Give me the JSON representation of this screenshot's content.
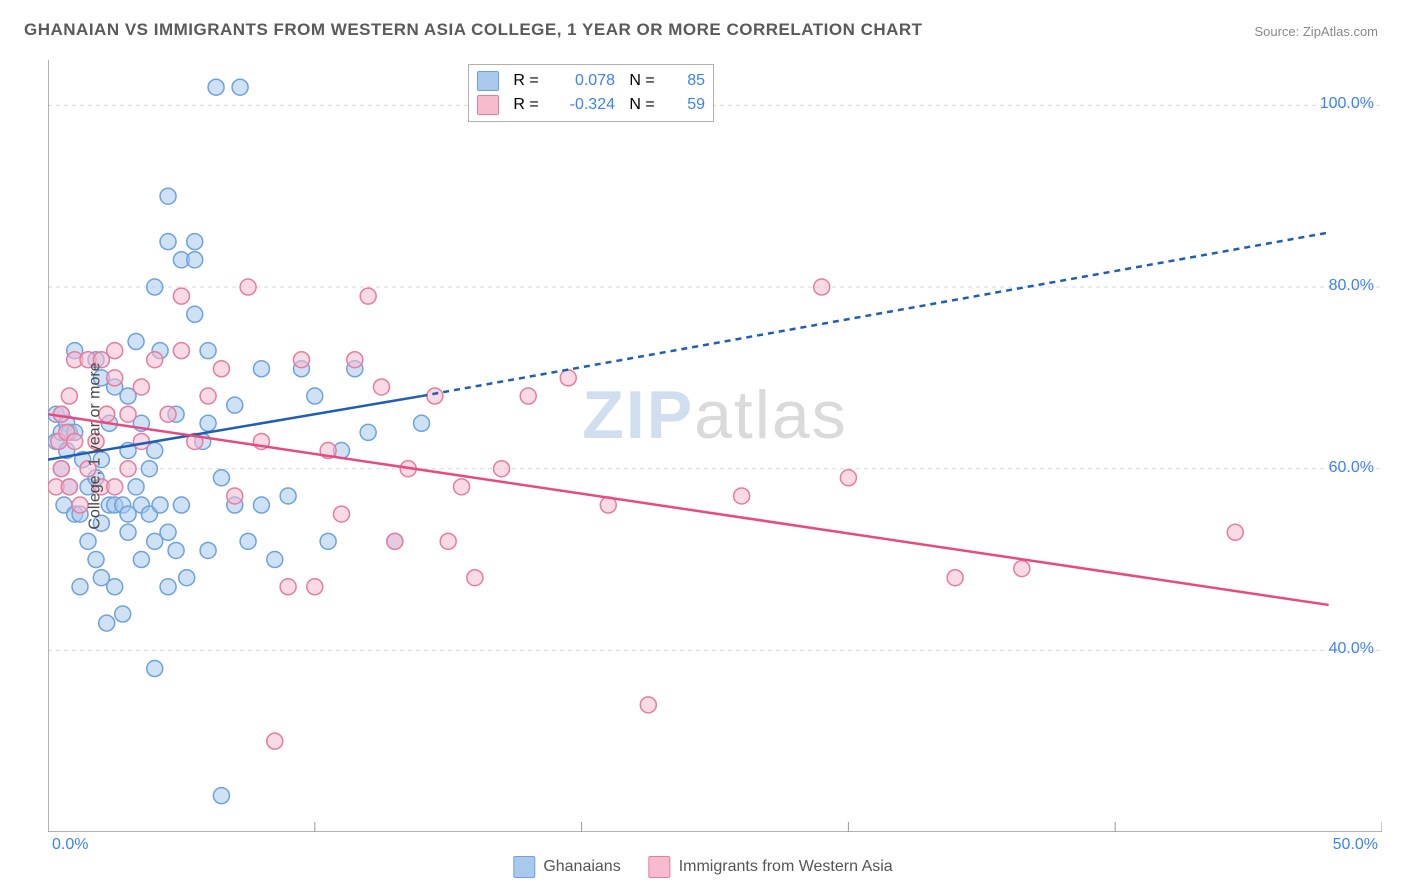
{
  "title": "GHANAIAN VS IMMIGRANTS FROM WESTERN ASIA COLLEGE, 1 YEAR OR MORE CORRELATION CHART",
  "source": "Source: ZipAtlas.com",
  "ylabel": "College, 1 year or more",
  "watermark": {
    "part1": "ZIP",
    "part2": "atlas"
  },
  "chart": {
    "type": "scatter",
    "xlim": [
      0,
      50
    ],
    "ylim": [
      20,
      105
    ],
    "xtick_positions": [
      0,
      10,
      20,
      30,
      40,
      50
    ],
    "ytick_positions": [
      40,
      60,
      80,
      100
    ],
    "ytick_labels": [
      "40.0%",
      "60.0%",
      "80.0%",
      "100.0%"
    ],
    "x_range_labels": {
      "left": "0.0%",
      "right": "50.0%"
    },
    "background_color": "#ffffff",
    "grid_color": "#d8d8d8",
    "axis_color": "#999999",
    "marker_radius": 8,
    "marker_stroke_width": 1.5,
    "series": [
      {
        "name": "Ghanaians",
        "fill": "#a8c8ec",
        "stroke": "#6ea2dd",
        "fill_opacity": 0.55,
        "R": "0.078",
        "N": "85",
        "trend": {
          "x1": 0,
          "y1": 61,
          "x2_solid": 14,
          "y2_solid": 68,
          "x2": 48,
          "y2": 86,
          "color": "#1e5fb4",
          "width": 2.5,
          "dash": "6 5"
        },
        "points": [
          [
            0.3,
            63
          ],
          [
            0.3,
            66
          ],
          [
            0.5,
            60
          ],
          [
            0.5,
            64
          ],
          [
            0.5,
            66
          ],
          [
            0.6,
            56
          ],
          [
            0.7,
            62
          ],
          [
            0.7,
            65
          ],
          [
            0.8,
            58
          ],
          [
            0.8,
            64
          ],
          [
            1.0,
            55
          ],
          [
            1.0,
            64
          ],
          [
            1.0,
            73
          ],
          [
            1.2,
            47
          ],
          [
            1.2,
            55
          ],
          [
            1.3,
            61
          ],
          [
            1.5,
            52
          ],
          [
            1.5,
            58
          ],
          [
            1.8,
            50
          ],
          [
            1.8,
            59
          ],
          [
            1.8,
            72
          ],
          [
            2.0,
            48
          ],
          [
            2.0,
            54
          ],
          [
            2.0,
            61
          ],
          [
            2.0,
            70
          ],
          [
            2.2,
            43
          ],
          [
            2.3,
            56
          ],
          [
            2.3,
            65
          ],
          [
            2.5,
            47
          ],
          [
            2.5,
            56
          ],
          [
            2.5,
            69
          ],
          [
            2.8,
            44
          ],
          [
            2.8,
            56
          ],
          [
            3.0,
            53
          ],
          [
            3.0,
            55
          ],
          [
            3.0,
            62
          ],
          [
            3.0,
            68
          ],
          [
            3.3,
            58
          ],
          [
            3.3,
            74
          ],
          [
            3.5,
            50
          ],
          [
            3.5,
            56
          ],
          [
            3.5,
            65
          ],
          [
            3.8,
            55
          ],
          [
            3.8,
            60
          ],
          [
            4.0,
            38
          ],
          [
            4.0,
            52
          ],
          [
            4.0,
            62
          ],
          [
            4.0,
            80
          ],
          [
            4.2,
            56
          ],
          [
            4.2,
            73
          ],
          [
            4.5,
            47
          ],
          [
            4.5,
            53
          ],
          [
            4.5,
            85
          ],
          [
            4.5,
            90
          ],
          [
            4.8,
            51
          ],
          [
            4.8,
            66
          ],
          [
            5.0,
            56
          ],
          [
            5.0,
            83
          ],
          [
            5.2,
            48
          ],
          [
            5.5,
            77
          ],
          [
            5.5,
            83
          ],
          [
            5.5,
            85
          ],
          [
            5.8,
            63
          ],
          [
            6.0,
            51
          ],
          [
            6.0,
            65
          ],
          [
            6.0,
            73
          ],
          [
            6.3,
            102
          ],
          [
            6.5,
            24
          ],
          [
            6.5,
            59
          ],
          [
            7.0,
            56
          ],
          [
            7.0,
            67
          ],
          [
            7.2,
            102
          ],
          [
            7.5,
            52
          ],
          [
            8.0,
            56
          ],
          [
            8.0,
            71
          ],
          [
            8.5,
            50
          ],
          [
            9.0,
            57
          ],
          [
            9.5,
            71
          ],
          [
            10.0,
            68
          ],
          [
            10.5,
            52
          ],
          [
            11.0,
            62
          ],
          [
            11.5,
            71
          ],
          [
            12.0,
            64
          ],
          [
            13.0,
            52
          ],
          [
            14.0,
            65
          ]
        ]
      },
      {
        "name": "Immigrants from Western Asia",
        "fill": "#f6bccd",
        "stroke": "#e77ca0",
        "fill_opacity": 0.55,
        "R": "-0.324",
        "N": "59",
        "trend": {
          "x1": 0,
          "y1": 66,
          "x2_solid": 48,
          "y2_solid": 45,
          "x2": 48,
          "y2": 45,
          "color": "#e84a7f",
          "width": 2.5,
          "dash": ""
        },
        "points": [
          [
            0.3,
            58
          ],
          [
            0.4,
            63
          ],
          [
            0.5,
            60
          ],
          [
            0.5,
            66
          ],
          [
            0.7,
            64
          ],
          [
            0.8,
            58
          ],
          [
            0.8,
            68
          ],
          [
            1.0,
            63
          ],
          [
            1.0,
            72
          ],
          [
            1.2,
            56
          ],
          [
            1.5,
            60
          ],
          [
            1.5,
            72
          ],
          [
            1.8,
            63
          ],
          [
            2.0,
            58
          ],
          [
            2.0,
            72
          ],
          [
            2.2,
            66
          ],
          [
            2.5,
            58
          ],
          [
            2.5,
            70
          ],
          [
            2.5,
            73
          ],
          [
            3.0,
            60
          ],
          [
            3.0,
            66
          ],
          [
            3.5,
            63
          ],
          [
            3.5,
            69
          ],
          [
            4.0,
            72
          ],
          [
            4.5,
            66
          ],
          [
            5.0,
            73
          ],
          [
            5.0,
            79
          ],
          [
            5.5,
            63
          ],
          [
            6.0,
            68
          ],
          [
            6.5,
            71
          ],
          [
            7.0,
            57
          ],
          [
            7.5,
            80
          ],
          [
            8.0,
            63
          ],
          [
            8.5,
            30
          ],
          [
            9.0,
            47
          ],
          [
            9.5,
            72
          ],
          [
            10.0,
            47
          ],
          [
            10.5,
            62
          ],
          [
            11.0,
            55
          ],
          [
            11.5,
            72
          ],
          [
            12.0,
            79
          ],
          [
            12.5,
            69
          ],
          [
            13.0,
            52
          ],
          [
            13.5,
            60
          ],
          [
            14.5,
            68
          ],
          [
            15.0,
            52
          ],
          [
            15.5,
            58
          ],
          [
            16.0,
            48
          ],
          [
            17.0,
            60
          ],
          [
            18.0,
            68
          ],
          [
            19.5,
            70
          ],
          [
            21.0,
            56
          ],
          [
            22.5,
            34
          ],
          [
            26.0,
            57
          ],
          [
            29.0,
            80
          ],
          [
            30.0,
            59
          ],
          [
            34.0,
            48
          ],
          [
            36.5,
            49
          ],
          [
            44.5,
            53
          ]
        ]
      }
    ]
  },
  "bottom_legend": [
    {
      "swatch_fill": "#a8c8ec",
      "swatch_stroke": "#6ea2dd",
      "label": "Ghanaians"
    },
    {
      "swatch_fill": "#f6bccd",
      "swatch_stroke": "#e77ca0",
      "label": "Immigrants from Western Asia"
    }
  ]
}
